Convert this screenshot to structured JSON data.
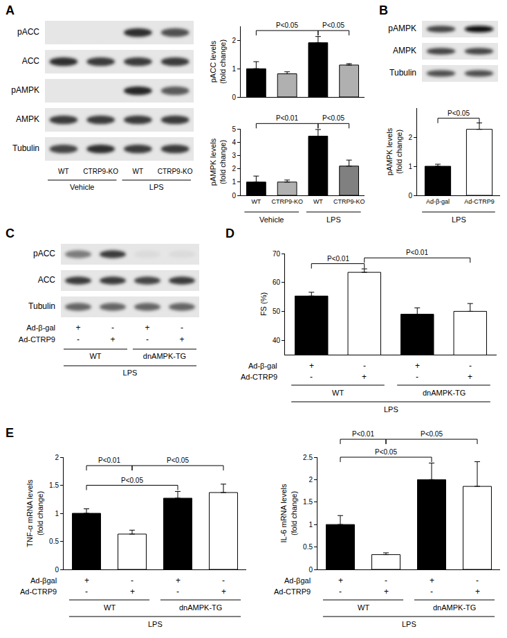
{
  "panel_labels": [
    "A",
    "B",
    "C",
    "D",
    "E"
  ],
  "blots": [
    {
      "rows": [
        {
          "label": "pACC",
          "bands": [
            0,
            0,
            0.85,
            0.7
          ]
        },
        {
          "label": "ACC",
          "bands": [
            0.85,
            0.8,
            0.8,
            0.8
          ]
        },
        {
          "label": "pAMPK",
          "bands": [
            0,
            0,
            0.9,
            0.65
          ]
        },
        {
          "label": "AMPK",
          "bands": [
            0.8,
            0.8,
            0.8,
            0.8
          ]
        },
        {
          "label": "Tubulin",
          "bands": [
            0.75,
            0.85,
            0.8,
            0.8
          ]
        }
      ],
      "lanes": [
        "WT",
        "CTRP9-KO",
        "WT",
        "CTRP9-KO"
      ],
      "groups": [
        [
          {
            "label": "Vehicle",
            "from": 0,
            "to": 1
          },
          {
            "label": "LPS",
            "from": 2,
            "to": 3
          }
        ]
      ]
    },
    {
      "rows": [
        {
          "label": "pAMPK",
          "bands": [
            0.75,
            1.0
          ]
        },
        {
          "label": "AMPK",
          "bands": [
            0.75,
            0.75
          ]
        },
        {
          "label": "Tubulin",
          "bands": [
            0.7,
            0.7
          ]
        }
      ]
    },
    {
      "rows": [
        {
          "label": "pACC",
          "bands": [
            0.5,
            0.8,
            0.05,
            0.05
          ]
        },
        {
          "label": "ACC",
          "bands": [
            0.8,
            0.8,
            0.75,
            0.8
          ]
        },
        {
          "label": "Tubulin",
          "bands": [
            0.6,
            0.6,
            0.6,
            0.6
          ]
        }
      ],
      "factor_rows": [
        {
          "label": "Ad-β-gal",
          "marks": [
            "+",
            "-",
            "+",
            "-"
          ]
        },
        {
          "label": "Ad-CTRP9",
          "marks": [
            "-",
            "+",
            "-",
            "+"
          ]
        }
      ],
      "groups": [
        [
          {
            "label": "WT",
            "from": 0,
            "to": 1
          },
          {
            "label": "dnAMPK-TG",
            "from": 2,
            "to": 3
          }
        ],
        [
          {
            "label": "LPS",
            "from": 0,
            "to": 3
          }
        ]
      ]
    }
  ],
  "chart_data": [
    {
      "type": "bar",
      "ylabel": [
        "pACC levels",
        "(fold change)"
      ],
      "categories": [
        null,
        null,
        null,
        null
      ],
      "tick_labels": "y",
      "values": [
        1.0,
        0.82,
        1.92,
        1.13
      ],
      "errors": [
        0.25,
        0.07,
        0.22,
        0.05
      ],
      "colors": [
        "#000000",
        "#b0b0b0",
        "#000000",
        "#b0b0b0"
      ],
      "ylim": [
        0,
        2.5
      ],
      "yticks": [
        0,
        1,
        2
      ],
      "grid": false,
      "comparisons": [
        {
          "from": 0,
          "to": 2,
          "y": 2.35,
          "label": "P<0.05"
        },
        {
          "from": 2,
          "to": 3,
          "y": 2.35,
          "label": "P<0.05"
        }
      ]
    },
    {
      "type": "bar",
      "ylabel": [
        "pAMPK levels",
        "(fold change)"
      ],
      "categories": [
        "WT",
        "CTRP9-KO",
        "WT",
        "CTRP9-KO"
      ],
      "values": [
        1.0,
        1.0,
        4.45,
        2.2
      ],
      "errors": [
        0.45,
        0.15,
        0.5,
        0.45
      ],
      "colors": [
        "#000000",
        "#b0b0b0",
        "#000000",
        "#808080"
      ],
      "ylim": [
        0,
        5
      ],
      "yticks": [
        0,
        1,
        2,
        3,
        4,
        5
      ],
      "grid": false,
      "comparisons": [
        {
          "from": 0,
          "to": 2,
          "y": 5.4,
          "label": "P<0.01"
        },
        {
          "from": 2,
          "to": 3,
          "y": 5.4,
          "label": "P<0.05"
        }
      ],
      "groups": [
        [
          {
            "label": "Vehicle",
            "from": 0,
            "to": 1
          },
          {
            "label": "LPS",
            "from": 2,
            "to": 3
          }
        ]
      ]
    },
    {
      "type": "bar",
      "ylabel": [
        "pAMPK levels",
        "(fold change)"
      ],
      "categories": [
        "Ad-β-gal",
        "Ad-CTRP9"
      ],
      "values": [
        1.0,
        2.27
      ],
      "errors": [
        0.07,
        0.22
      ],
      "colors": [
        "#000000",
        "#ffffff"
      ],
      "ylim": [
        0,
        3
      ],
      "yticks": [
        0,
        1,
        2
      ],
      "grid": false,
      "comparisons": [
        {
          "from": 0,
          "to": 1,
          "y": 2.65,
          "label": "P<0.05"
        }
      ],
      "groups": [
        [
          {
            "label": "LPS",
            "from": 0,
            "to": 1
          }
        ]
      ]
    },
    {
      "type": "bar",
      "ylabel": [
        "FS (%)"
      ],
      "categories": [
        null,
        null,
        null,
        null
      ],
      "tick_labels": "y",
      "values": [
        55.3,
        63.5,
        49,
        50
      ],
      "errors": [
        1.3,
        1.2,
        2.2,
        2.7
      ],
      "colors": [
        "#000000",
        "#ffffff",
        "#000000",
        "#ffffff"
      ],
      "ylim": [
        35,
        70
      ],
      "yticks": [
        40,
        50,
        60,
        70
      ],
      "grid": false,
      "comparisons": [
        {
          "from": 0,
          "to": 1,
          "y": 66.5,
          "label": "P<0.01"
        },
        {
          "from": 1,
          "to": 3,
          "y": 68.5,
          "label": "P<0.01"
        }
      ],
      "factor_rows": [
        {
          "label": "Ad-β-gal",
          "marks": [
            "+",
            "-",
            "+",
            "-"
          ]
        },
        {
          "label": "Ad-CTRP9",
          "marks": [
            "-",
            "+",
            "-",
            "+"
          ]
        }
      ],
      "groups": [
        [
          {
            "label": "WT",
            "from": 0,
            "to": 1
          },
          {
            "label": "dnAMPK-TG",
            "from": 2,
            "to": 3
          }
        ],
        [
          {
            "label": "LPS",
            "from": 0,
            "to": 3
          }
        ]
      ]
    },
    {
      "type": "bar",
      "ylabel": [
        "TNF-α mRNA levels",
        "(fold change)"
      ],
      "categories": [
        null,
        null,
        null,
        null
      ],
      "tick_labels": "y",
      "values": [
        1.0,
        0.63,
        1.27,
        1.37
      ],
      "errors": [
        0.08,
        0.07,
        0.12,
        0.15
      ],
      "colors": [
        "#000000",
        "#ffffff",
        "#000000",
        "#ffffff"
      ],
      "ylim": [
        0,
        2
      ],
      "yticks": [
        0,
        0.5,
        1,
        1.5,
        2
      ],
      "grid": false,
      "comparisons": [
        {
          "from": 0,
          "to": 1,
          "y": 1.85,
          "label": "P<0.01"
        },
        {
          "from": 1,
          "to": 3,
          "y": 1.85,
          "label": "P<0.05"
        },
        {
          "from": 0,
          "to": 2,
          "y": 1.5,
          "label": "P<0.05"
        }
      ],
      "factor_rows": [
        {
          "label": "Ad-βgal",
          "marks": [
            "+",
            "-",
            "+",
            "-"
          ]
        },
        {
          "label": "Ad-CTRP9",
          "marks": [
            "-",
            "+",
            "-",
            "+"
          ]
        }
      ],
      "groups": [
        [
          {
            "label": "WT",
            "from": 0,
            "to": 1
          },
          {
            "label": "dnAMPK-TG",
            "from": 2,
            "to": 3
          }
        ],
        [
          {
            "label": "LPS",
            "from": 0,
            "to": 3
          }
        ]
      ]
    },
    {
      "type": "bar",
      "ylabel": [
        "IL-6 mRNA levels",
        "(fold change)"
      ],
      "categories": [
        null,
        null,
        null,
        null
      ],
      "tick_labels": "y",
      "values": [
        1.0,
        0.33,
        2.0,
        1.85
      ],
      "errors": [
        0.2,
        0.04,
        0.37,
        0.55
      ],
      "colors": [
        "#000000",
        "#ffffff",
        "#000000",
        "#ffffff"
      ],
      "ylim": [
        0,
        2.5
      ],
      "yticks": [
        0,
        0.5,
        1,
        1.5,
        2,
        2.5
      ],
      "grid": false,
      "comparisons": [
        {
          "from": 0,
          "to": 1,
          "y": 2.9,
          "label": "P<0.01"
        },
        {
          "from": 1,
          "to": 3,
          "y": 2.9,
          "label": "P<0.05"
        },
        {
          "from": 0,
          "to": 2,
          "y": 2.5,
          "label": "P<0.05"
        }
      ],
      "factor_rows": [
        {
          "label": "Ad-βgal",
          "marks": [
            "+",
            "-",
            "+",
            "-"
          ]
        },
        {
          "label": "Ad-CTRP9",
          "marks": [
            "-",
            "+",
            "-",
            "+"
          ]
        }
      ],
      "groups": [
        [
          {
            "label": "WT",
            "from": 0,
            "to": 1
          },
          {
            "label": "dnAMPK-TG",
            "from": 2,
            "to": 3
          }
        ],
        [
          {
            "label": "LPS",
            "from": 0,
            "to": 3
          }
        ]
      ]
    }
  ]
}
